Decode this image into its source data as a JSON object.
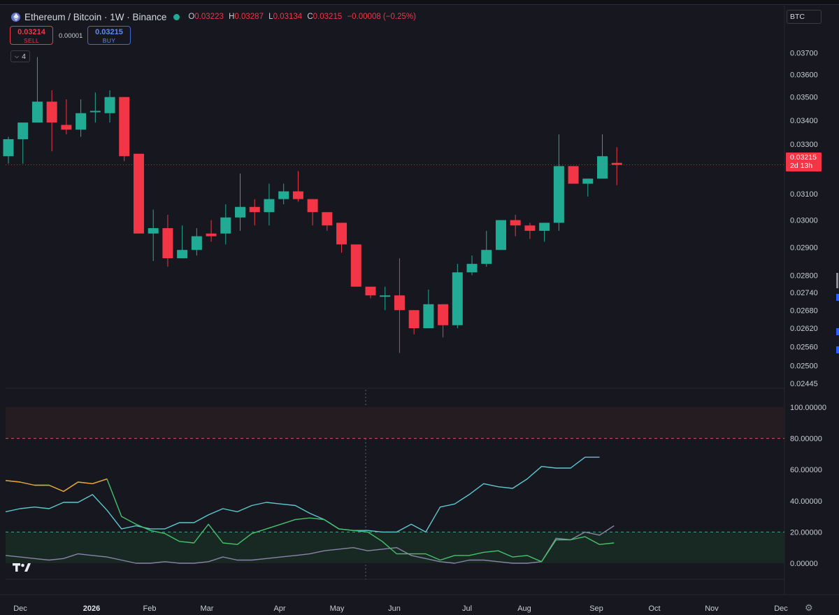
{
  "header": {
    "symbol_icon": "ethereum-icon",
    "title": "Ethereum / Bitcoin · 1W · Binance",
    "status_color": "#22ab94",
    "ohlc": {
      "o_label": "O",
      "o": "0.03223",
      "h_label": "H",
      "h": "0.03287",
      "l_label": "L",
      "l": "0.03134",
      "c_label": "C",
      "c": "0.03215",
      "change": "−0.00008 (−0.25%)"
    }
  },
  "trade": {
    "sell_price": "0.03214",
    "sell_label": "SELL",
    "spread": "0.00001",
    "buy_price": "0.03215",
    "buy_label": "BUY"
  },
  "indicators_collapsed_count": "4",
  "currency_button": "BTC",
  "last_price": {
    "value": "0.03215",
    "countdown": "2d 13h",
    "color": "#f23645"
  },
  "colors": {
    "up": "#22ab94",
    "down": "#f23645",
    "background": "#16171f"
  },
  "chart_data": [
    {
      "type": "candlestick",
      "price_scale": "log",
      "ylim": [
        0.02445,
        0.0375
      ],
      "price_ticks": [
        "0.03700",
        "0.03600",
        "0.03500",
        "0.03400",
        "0.03300",
        "0.03100",
        "0.03000",
        "0.02900",
        "0.02800",
        "0.02740",
        "0.02680",
        "0.02620",
        "0.02560",
        "0.02500",
        "0.02445"
      ],
      "x_ticks": [
        "Dec",
        "2026",
        "Feb",
        "Mar",
        "Apr",
        "May",
        "Jun",
        "Jul",
        "Aug",
        "Sep",
        "Oct",
        "Nov",
        "Dec"
      ],
      "candles": [
        {
          "o": 0.0325,
          "h": 0.0333,
          "l": 0.0322,
          "c": 0.0332
        },
        {
          "o": 0.0332,
          "h": 0.0338,
          "l": 0.0322,
          "c": 0.0339
        },
        {
          "o": 0.0339,
          "h": 0.0368,
          "l": 0.0339,
          "c": 0.0348
        },
        {
          "o": 0.0348,
          "h": 0.0353,
          "l": 0.0327,
          "c": 0.0339
        },
        {
          "o": 0.0338,
          "h": 0.0349,
          "l": 0.0334,
          "c": 0.0336
        },
        {
          "o": 0.0336,
          "h": 0.0349,
          "l": 0.0333,
          "c": 0.0343
        },
        {
          "o": 0.0344,
          "h": 0.0352,
          "l": 0.0339,
          "c": 0.0344
        },
        {
          "o": 0.0343,
          "h": 0.0353,
          "l": 0.0339,
          "c": 0.035
        },
        {
          "o": 0.035,
          "h": 0.035,
          "l": 0.0323,
          "c": 0.0325
        },
        {
          "o": 0.0326,
          "h": 0.0326,
          "l": 0.0295,
          "c": 0.0295
        },
        {
          "o": 0.0295,
          "h": 0.0304,
          "l": 0.0285,
          "c": 0.0297
        },
        {
          "o": 0.0297,
          "h": 0.0302,
          "l": 0.0283,
          "c": 0.0286
        },
        {
          "o": 0.0286,
          "h": 0.0298,
          "l": 0.0286,
          "c": 0.0289
        },
        {
          "o": 0.0289,
          "h": 0.0297,
          "l": 0.0287,
          "c": 0.0294
        },
        {
          "o": 0.0295,
          "h": 0.03,
          "l": 0.0292,
          "c": 0.0294
        },
        {
          "o": 0.0295,
          "h": 0.0306,
          "l": 0.0291,
          "c": 0.0301
        },
        {
          "o": 0.0301,
          "h": 0.0318,
          "l": 0.0296,
          "c": 0.0305
        },
        {
          "o": 0.0305,
          "h": 0.0308,
          "l": 0.0298,
          "c": 0.0303
        },
        {
          "o": 0.0303,
          "h": 0.0314,
          "l": 0.0298,
          "c": 0.0308
        },
        {
          "o": 0.0308,
          "h": 0.0314,
          "l": 0.0306,
          "c": 0.0311
        },
        {
          "o": 0.0311,
          "h": 0.0319,
          "l": 0.0307,
          "c": 0.0308
        },
        {
          "o": 0.0308,
          "h": 0.0308,
          "l": 0.0298,
          "c": 0.0303
        },
        {
          "o": 0.0303,
          "h": 0.0303,
          "l": 0.0296,
          "c": 0.0298
        },
        {
          "o": 0.0299,
          "h": 0.0299,
          "l": 0.0288,
          "c": 0.0291
        },
        {
          "o": 0.0291,
          "h": 0.0291,
          "l": 0.0276,
          "c": 0.0276
        },
        {
          "o": 0.0276,
          "h": 0.0276,
          "l": 0.0272,
          "c": 0.0273
        },
        {
          "o": 0.0273,
          "h": 0.0276,
          "l": 0.0268,
          "c": 0.0273
        },
        {
          "o": 0.0273,
          "h": 0.0286,
          "l": 0.0254,
          "c": 0.0268
        },
        {
          "o": 0.0268,
          "h": 0.0268,
          "l": 0.026,
          "c": 0.0262
        },
        {
          "o": 0.0262,
          "h": 0.0275,
          "l": 0.0262,
          "c": 0.027
        },
        {
          "o": 0.027,
          "h": 0.027,
          "l": 0.0259,
          "c": 0.0263
        },
        {
          "o": 0.0263,
          "h": 0.0284,
          "l": 0.0262,
          "c": 0.0281
        },
        {
          "o": 0.0281,
          "h": 0.0287,
          "l": 0.028,
          "c": 0.0284
        },
        {
          "o": 0.0284,
          "h": 0.0296,
          "l": 0.0283,
          "c": 0.0289
        },
        {
          "o": 0.0289,
          "h": 0.03,
          "l": 0.0289,
          "c": 0.03
        },
        {
          "o": 0.03,
          "h": 0.0302,
          "l": 0.0294,
          "c": 0.0298
        },
        {
          "o": 0.0298,
          "h": 0.0299,
          "l": 0.0293,
          "c": 0.0296
        },
        {
          "o": 0.0296,
          "h": 0.0299,
          "l": 0.0292,
          "c": 0.0299
        },
        {
          "o": 0.0299,
          "h": 0.0334,
          "l": 0.0296,
          "c": 0.0321
        },
        {
          "o": 0.0321,
          "h": 0.0321,
          "l": 0.0314,
          "c": 0.0314
        },
        {
          "o": 0.0314,
          "h": 0.0316,
          "l": 0.0309,
          "c": 0.0316
        },
        {
          "o": 0.0316,
          "h": 0.0334,
          "l": 0.0316,
          "c": 0.0325
        },
        {
          "o": 0.03223,
          "h": 0.03287,
          "l": 0.03134,
          "c": 0.03215
        }
      ]
    },
    {
      "type": "line",
      "ylim": [
        -5,
        108
      ],
      "y_ticks": [
        "100.00000",
        "80.00000",
        "60.00000",
        "40.00000",
        "20.00000",
        "0.00000"
      ],
      "bands": [
        {
          "from": 80,
          "to": 100,
          "color": "#251c22"
        },
        {
          "from": 0,
          "to": 20,
          "color": "#182823"
        }
      ],
      "levels": [
        {
          "value": 80,
          "color": "#d0575e"
        },
        {
          "value": 20,
          "color": "#3fa88a"
        }
      ],
      "series": [
        {
          "color": "#f0a030",
          "values": [
            53,
            52,
            50,
            50,
            46,
            52,
            51,
            54
          ]
        },
        {
          "color": "#5ec8d0",
          "values": [
            33,
            35,
            36,
            35,
            39,
            39,
            44,
            34,
            22,
            24,
            22,
            22,
            26,
            26,
            31,
            35,
            33,
            37,
            39,
            38,
            37,
            32,
            28,
            22,
            21,
            21,
            20,
            20,
            25,
            20,
            36,
            38,
            44,
            51,
            49,
            48,
            54,
            62,
            61,
            61,
            68,
            68
          ]
        },
        {
          "color": "#46c16c",
          "values": [
            53,
            52,
            50,
            50,
            46,
            52,
            51,
            54,
            30,
            25,
            21,
            19,
            14,
            13,
            25,
            13,
            12,
            19,
            22,
            25,
            28,
            29,
            28,
            22,
            21,
            20,
            14,
            6,
            6,
            6,
            2,
            5,
            5,
            7,
            8,
            4,
            5,
            1,
            15,
            15,
            17,
            12,
            13
          ]
        },
        {
          "color": "#8a84a8",
          "values": [
            5,
            4,
            3,
            2,
            3,
            6,
            5,
            4,
            2,
            0,
            0,
            1,
            0,
            0,
            1,
            4,
            2,
            2,
            3,
            4,
            5,
            6,
            8,
            9,
            10,
            8,
            9,
            10,
            5,
            3,
            1,
            0,
            2,
            2,
            1,
            0,
            0,
            1,
            16,
            15,
            20,
            18,
            24
          ]
        }
      ]
    }
  ]
}
